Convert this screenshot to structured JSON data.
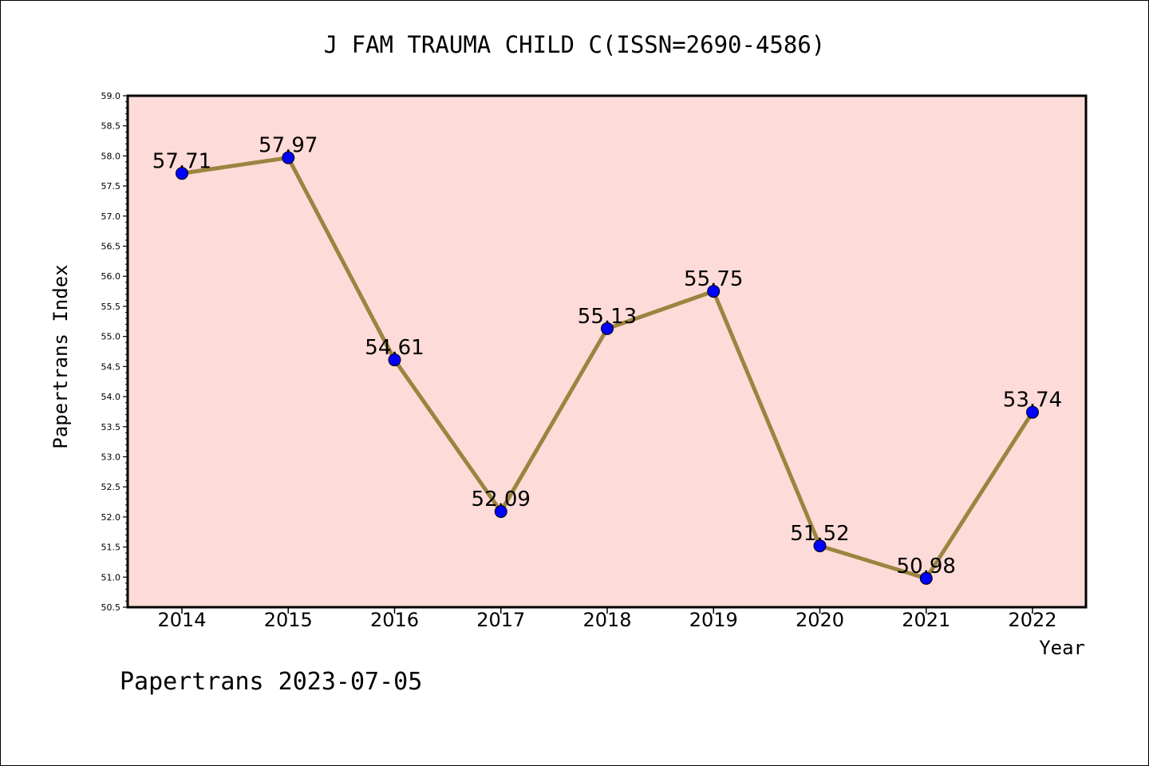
{
  "chart_data": {
    "type": "line",
    "title": "J FAM TRAUMA CHILD C(ISSN=2690-4586)",
    "xlabel": "Year",
    "ylabel": "Papertrans Index",
    "categories": [
      "2014",
      "2015",
      "2016",
      "2017",
      "2018",
      "2019",
      "2020",
      "2021",
      "2022"
    ],
    "series": [
      {
        "values": [
          57.71,
          57.97,
          54.61,
          52.09,
          55.13,
          55.75,
          51.52,
          50.98,
          53.74
        ]
      }
    ],
    "data_labels": [
      "57.71",
      "57.97",
      "54.61",
      "52.09",
      "55.13",
      "55.75",
      "51.52",
      "50.98",
      "53.74"
    ],
    "ylim": [
      50.5,
      59.0
    ],
    "y_ticks": [
      50.5,
      51.0,
      51.5,
      52.0,
      52.5,
      53.0,
      53.5,
      54.0,
      54.5,
      55.0,
      55.5,
      56.0,
      56.5,
      57.0,
      57.5,
      58.0,
      58.5,
      59.0
    ],
    "y_tick_labels": [
      "50.5",
      "51.0",
      "51.5",
      "52.0",
      "52.5",
      "53.0",
      "53.5",
      "54.0",
      "54.5",
      "55.0",
      "55.5",
      "56.0",
      "56.5",
      "57.0",
      "57.5",
      "58.0",
      "58.5",
      "59.0"
    ],
    "grid": false,
    "colors": {
      "plot_background": "#fddbd8",
      "line": "#9b8440",
      "marker": "#0000ff"
    }
  },
  "footer": {
    "text": "Papertrans 2023-07-05"
  }
}
